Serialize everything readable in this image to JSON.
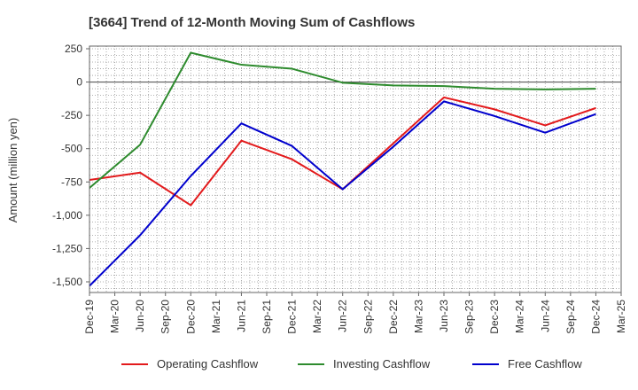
{
  "chart_data": {
    "type": "line",
    "title": "[3664]  Trend of 12-Month Moving Sum of Cashflows",
    "xlabel": "",
    "ylabel": "Amount (million yen)",
    "ylim": [
      -1580,
      270
    ],
    "yticks": [
      250,
      0,
      -250,
      -500,
      -750,
      -1000,
      -1250,
      -1500
    ],
    "ytick_labels": [
      "250",
      "0",
      "-250",
      "-500",
      "-750",
      "-1,000",
      "-1,250",
      "-1,500"
    ],
    "x_ticks": [
      "Dec-19",
      "Mar-20",
      "Jun-20",
      "Sep-20",
      "Dec-20",
      "Mar-21",
      "Jun-21",
      "Sep-21",
      "Dec-21",
      "Mar-22",
      "Jun-22",
      "Sep-22",
      "Dec-22",
      "Mar-23",
      "Jun-23",
      "Sep-23",
      "Dec-23",
      "Mar-24",
      "Jun-24",
      "Sep-24",
      "Dec-24",
      "Mar-25"
    ],
    "x": [
      "Dec-19",
      "Jun-20",
      "Dec-20",
      "Jun-21",
      "Dec-21",
      "Jun-22",
      "Dec-22",
      "Jun-23",
      "Dec-23",
      "Jun-24",
      "Dec-24"
    ],
    "grid": true,
    "legend_position": "bottom",
    "series": [
      {
        "name": "Operating Cashflow",
        "color": "#e31a1c",
        "values": [
          -735,
          -680,
          -925,
          -440,
          -580,
          -805,
          -460,
          -115,
          -205,
          -325,
          -195
        ]
      },
      {
        "name": "Investing Cashflow",
        "color": "#2e8b2e",
        "values": [
          -795,
          -470,
          220,
          130,
          100,
          -5,
          -25,
          -30,
          -50,
          -55,
          -50
        ]
      },
      {
        "name": "Free Cashflow",
        "color": "#0000cd",
        "values": [
          -1530,
          -1150,
          -705,
          -310,
          -480,
          -805,
          -485,
          -145,
          -255,
          -380,
          -240
        ]
      }
    ]
  }
}
